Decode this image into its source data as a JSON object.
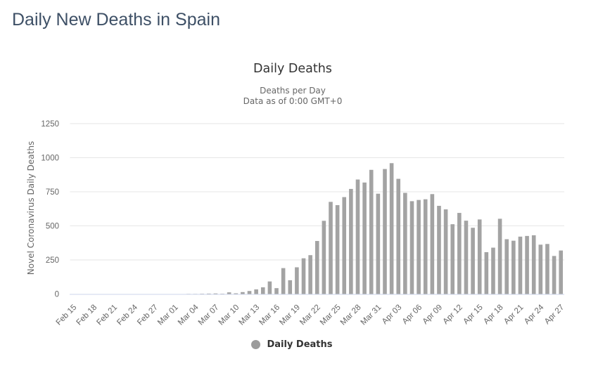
{
  "page": {
    "title": "Daily New Deaths in Spain"
  },
  "chart": {
    "title": "Daily Deaths",
    "subtitle_line1": "Deaths per Day",
    "subtitle_line2": "Data as of 0:00 GMT+0",
    "y_axis_title": "Novel Coronavirus Daily Deaths",
    "legend_label": "Daily Deaths",
    "colors": {
      "bar": "#a3a3a3",
      "legend_marker": "#9b9b9b",
      "grid": "#e6e6e6",
      "axis_line": "#ccd6eb",
      "tick_label": "#666666",
      "title_text": "#333333",
      "subtitle_text": "#666666",
      "page_title": "#3e5066"
    }
  },
  "chart_data": {
    "type": "bar",
    "title": "Daily Deaths",
    "subtitle": [
      "Deaths per Day",
      "Data as of 0:00 GMT+0"
    ],
    "xlabel": "",
    "ylabel": "Novel Coronavirus Daily Deaths",
    "ylim": [
      0,
      1250
    ],
    "y_ticks": [
      0,
      250,
      500,
      750,
      1000,
      1250
    ],
    "x_tick_interval": 3,
    "grid": true,
    "legend_entries": [
      "Daily Deaths"
    ],
    "legend_position": "bottom",
    "categories": [
      "Feb 15",
      "Feb 16",
      "Feb 17",
      "Feb 18",
      "Feb 19",
      "Feb 20",
      "Feb 21",
      "Feb 22",
      "Feb 23",
      "Feb 24",
      "Feb 25",
      "Feb 26",
      "Feb 27",
      "Feb 28",
      "Feb 29",
      "Mar 01",
      "Mar 02",
      "Mar 03",
      "Mar 04",
      "Mar 05",
      "Mar 06",
      "Mar 07",
      "Mar 08",
      "Mar 09",
      "Mar 10",
      "Mar 11",
      "Mar 12",
      "Mar 13",
      "Mar 14",
      "Mar 15",
      "Mar 16",
      "Mar 17",
      "Mar 18",
      "Mar 19",
      "Mar 20",
      "Mar 21",
      "Mar 22",
      "Mar 23",
      "Mar 24",
      "Mar 25",
      "Mar 26",
      "Mar 27",
      "Mar 28",
      "Mar 29",
      "Mar 30",
      "Mar 31",
      "Apr 01",
      "Apr 02",
      "Apr 03",
      "Apr 04",
      "Apr 05",
      "Apr 06",
      "Apr 07",
      "Apr 08",
      "Apr 09",
      "Apr 10",
      "Apr 11",
      "Apr 12",
      "Apr 13",
      "Apr 14",
      "Apr 15",
      "Apr 16",
      "Apr 17",
      "Apr 18",
      "Apr 19",
      "Apr 20",
      "Apr 21",
      "Apr 22",
      "Apr 23",
      "Apr 24",
      "Apr 25",
      "Apr 26",
      "Apr 27"
    ],
    "values": [
      0,
      0,
      0,
      0,
      0,
      0,
      0,
      0,
      0,
      0,
      0,
      0,
      0,
      0,
      0,
      0,
      0,
      1,
      1,
      2,
      3,
      4,
      2,
      12,
      5,
      14,
      22,
      34,
      49,
      92,
      43,
      190,
      101,
      196,
      262,
      285,
      389,
      537,
      676,
      652,
      711,
      771,
      840,
      818,
      911,
      736,
      917,
      960,
      845,
      742,
      681,
      690,
      695,
      733,
      647,
      621,
      512,
      595,
      538,
      486,
      547,
      307,
      340,
      552,
      402,
      391,
      421,
      426,
      431,
      362,
      367,
      279,
      319
    ]
  }
}
